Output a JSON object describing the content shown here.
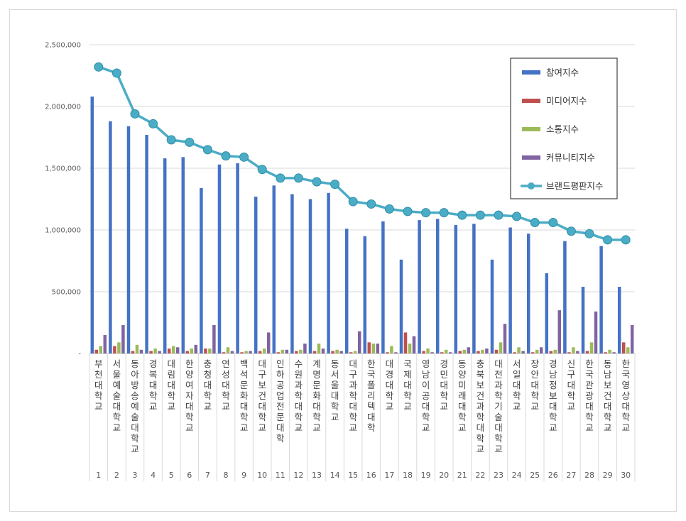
{
  "chart_data": {
    "type": "bar",
    "title": "",
    "xlabel": "",
    "ylabel": "",
    "ylim": [
      0,
      2500000
    ],
    "yticks": [
      0,
      500000,
      1000000,
      1500000,
      2000000,
      2500000
    ],
    "ytick_labels": [
      "-",
      "500,000",
      "1,000,000",
      "1,500,000",
      "2,000,000",
      "2,500,000"
    ],
    "grid": true,
    "legend_position": "top-right",
    "categories": [
      "부천대학교",
      "서울예술대학교",
      "동아방송예술대학교",
      "경복대학교",
      "대림대학교",
      "한양여자대학교",
      "충청대학교",
      "연성대학교",
      "백석문화대학교",
      "대구보건대학교",
      "인하공업전문대학",
      "수원과학대학교",
      "계명문화대학교",
      "동서울대학교",
      "대구과학대학교",
      "한국폴리텍대학",
      "대경대학교",
      "국제대학교",
      "영남이공대학교",
      "경민대학교",
      "동양미래대학교",
      "충북보건과학대학교",
      "대전과학기술대학교",
      "서일대학교",
      "장안대학교",
      "경남정보대학교",
      "신구대학교",
      "한국관광대학교",
      "동남보건대학교",
      "한국영상대학교"
    ],
    "ranks": [
      "1",
      "2",
      "3",
      "4",
      "5",
      "6",
      "7",
      "8",
      "9",
      "10",
      "11",
      "12",
      "13",
      "14",
      "15",
      "16",
      "17",
      "18",
      "19",
      "20",
      "21",
      "22",
      "23",
      "24",
      "25",
      "26",
      "27",
      "28",
      "29",
      "30"
    ],
    "series": [
      {
        "name": "참여지수",
        "color": "#4472c4",
        "kind": "bar",
        "values": [
          2080000,
          1880000,
          1840000,
          1770000,
          1580000,
          1590000,
          1340000,
          1530000,
          1540000,
          1270000,
          1360000,
          1290000,
          1250000,
          1300000,
          1010000,
          950000,
          1070000,
          760000,
          1080000,
          1090000,
          1040000,
          1050000,
          760000,
          1020000,
          970000,
          650000,
          910000,
          540000,
          870000,
          540000
        ]
      },
      {
        "name": "미디어지수",
        "color": "#c0504d",
        "kind": "bar",
        "values": [
          30000,
          60000,
          20000,
          20000,
          40000,
          20000,
          40000,
          10000,
          10000,
          20000,
          10000,
          20000,
          20000,
          20000,
          10000,
          90000,
          10000,
          170000,
          20000,
          10000,
          20000,
          20000,
          30000,
          10000,
          10000,
          20000,
          10000,
          20000,
          10000,
          90000
        ]
      },
      {
        "name": "소통지수",
        "color": "#9bbb59",
        "kind": "bar",
        "values": [
          60000,
          90000,
          70000,
          40000,
          60000,
          40000,
          40000,
          50000,
          20000,
          40000,
          30000,
          30000,
          80000,
          30000,
          20000,
          80000,
          60000,
          80000,
          40000,
          30000,
          30000,
          30000,
          90000,
          50000,
          30000,
          30000,
          50000,
          90000,
          30000,
          50000
        ]
      },
      {
        "name": "커뮤니티지수",
        "color": "#8064a2",
        "kind": "bar",
        "values": [
          150000,
          230000,
          30000,
          20000,
          50000,
          70000,
          230000,
          20000,
          20000,
          170000,
          30000,
          80000,
          40000,
          20000,
          180000,
          80000,
          10000,
          140000,
          10000,
          10000,
          50000,
          40000,
          240000,
          20000,
          50000,
          350000,
          20000,
          340000,
          10000,
          230000
        ]
      },
      {
        "name": "브랜드평판지수",
        "color": "#4bacc6",
        "kind": "line",
        "values": [
          2320000,
          2270000,
          1940000,
          1860000,
          1730000,
          1710000,
          1650000,
          1600000,
          1590000,
          1490000,
          1420000,
          1420000,
          1390000,
          1370000,
          1230000,
          1210000,
          1170000,
          1150000,
          1140000,
          1140000,
          1120000,
          1120000,
          1120000,
          1110000,
          1060000,
          1060000,
          990000,
          970000,
          920000,
          920000
        ]
      }
    ]
  }
}
